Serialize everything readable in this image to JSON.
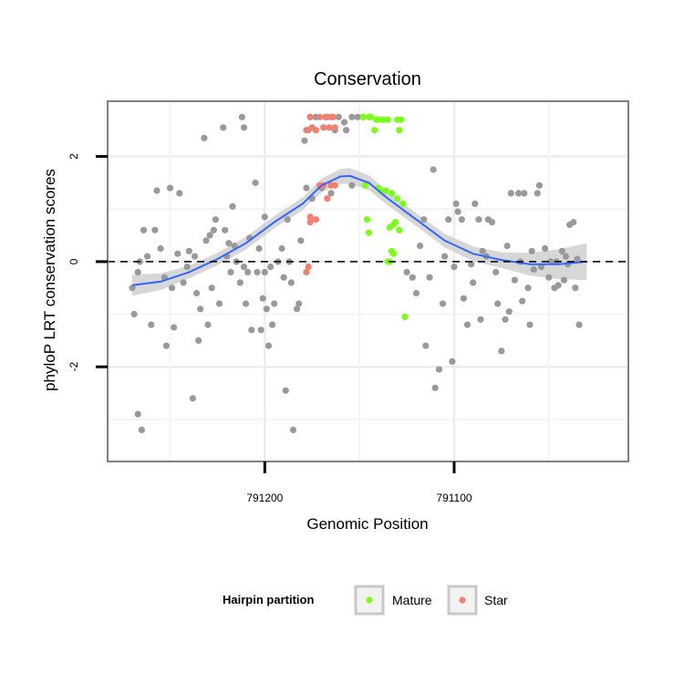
{
  "chart_data": {
    "type": "scatter",
    "title": "Conservation",
    "xlabel": "Genomic Position",
    "ylabel": "phyloP LRT conservation scores",
    "x_reversed": true,
    "xlim": [
      791283,
      791008
    ],
    "ylim": [
      -3.8,
      3.05
    ],
    "x_ticks": [
      791200,
      791100
    ],
    "x_tick_labels": [
      "791200",
      "791100"
    ],
    "y_ticks": [
      -2,
      0,
      2
    ],
    "y_tick_labels": [
      "-2",
      "0",
      "2"
    ],
    "reference_line": {
      "y": 0,
      "style": "dashed"
    },
    "legend": {
      "title": "Hairpin partition",
      "position": "bottom",
      "entries": [
        {
          "label": "Mature",
          "color": "#7CFC1A"
        },
        {
          "label": "Star",
          "color": "#F08070"
        }
      ]
    },
    "colors": {
      "other": "#999999",
      "mature": "#7CFC1A",
      "star": "#F08070",
      "smooth": "#3366FF",
      "band": "#D0D0D0"
    },
    "series": [
      {
        "key": "other",
        "points": [
          [
            791270,
            -0.5
          ],
          [
            791269,
            -1.0
          ],
          [
            791267,
            -2.9
          ],
          [
            791265,
            -3.2
          ],
          [
            791267,
            -0.2
          ],
          [
            791266,
            0.0
          ],
          [
            791264,
            0.6
          ],
          [
            791262,
            0.1
          ],
          [
            791260,
            -1.2
          ],
          [
            791258,
            0.6
          ],
          [
            791257,
            1.35
          ],
          [
            791255,
            0.25
          ],
          [
            791253,
            -0.3
          ],
          [
            791252,
            -1.6
          ],
          [
            791250,
            1.4
          ],
          [
            791249,
            -0.5
          ],
          [
            791248,
            -1.25
          ],
          [
            791246,
            0.15
          ],
          [
            791245,
            1.3
          ],
          [
            791243,
            -0.4
          ],
          [
            791241,
            -0.1
          ],
          [
            791240,
            0.2
          ],
          [
            791238,
            -2.6
          ],
          [
            791237,
            0.1
          ],
          [
            791236,
            -0.6
          ],
          [
            791235,
            -1.5
          ],
          [
            791234,
            -0.9
          ],
          [
            791232,
            2.35
          ],
          [
            791231,
            0.4
          ],
          [
            791230,
            -1.2
          ],
          [
            791229,
            0.5
          ],
          [
            791228,
            -0.5
          ],
          [
            791227,
            0.6
          ],
          [
            791226,
            0.8
          ],
          [
            791224,
            -0.8
          ],
          [
            791222,
            2.55
          ],
          [
            791220,
            0.1
          ],
          [
            791221,
            0.6
          ],
          [
            791219,
            0.35
          ],
          [
            791218,
            -0.2
          ],
          [
            791217,
            1.05
          ],
          [
            791216,
            0.3
          ],
          [
            791215,
            0.0
          ],
          [
            791213,
            -0.4
          ],
          [
            791211,
            -0.1
          ],
          [
            791210,
            -0.8
          ],
          [
            791209,
            -0.2
          ],
          [
            791208,
            0.45
          ],
          [
            791207,
            -1.3
          ],
          [
            791205,
            1.5
          ],
          [
            791204,
            -0.2
          ],
          [
            791203,
            0.25
          ],
          [
            791202,
            -1.3
          ],
          [
            791201,
            -0.7
          ],
          [
            791200,
            -0.2
          ],
          [
            791199,
            -0.9
          ],
          [
            791198,
            -1.6
          ],
          [
            791197,
            -0.1
          ],
          [
            791196,
            -1.2
          ],
          [
            791195,
            -0.8
          ],
          [
            791193,
            0.0
          ],
          [
            791191,
            0.25
          ],
          [
            791190,
            -0.3
          ],
          [
            791189,
            -2.45
          ],
          [
            791188,
            0.8
          ],
          [
            791187,
            0.0
          ],
          [
            791186,
            -0.4
          ],
          [
            791185,
            -3.2
          ],
          [
            791183,
            -0.9
          ],
          [
            791182,
            -0.8
          ],
          [
            791181,
            0.4
          ],
          [
            791179,
            2.3
          ],
          [
            791178,
            1.4
          ],
          [
            791177,
            2.5
          ],
          [
            791176,
            2.75
          ],
          [
            791175,
            1.2
          ],
          [
            791173,
            2.75
          ],
          [
            791170,
            1.4
          ],
          [
            791165,
            1.3
          ],
          [
            791164,
            2.75
          ],
          [
            791163,
            2.5
          ],
          [
            791161,
            2.75
          ],
          [
            791158,
            2.65
          ],
          [
            791157,
            2.5
          ],
          [
            791154,
            2.75
          ],
          [
            791154,
            1.45
          ],
          [
            791151,
            2.75
          ],
          [
            791148,
            2.75
          ],
          [
            791125,
            -0.2
          ],
          [
            791122,
            -0.3
          ],
          [
            791120,
            -0.6
          ],
          [
            791118,
            0.3
          ],
          [
            791116,
            0.8
          ],
          [
            791115,
            -1.6
          ],
          [
            791113,
            -0.3
          ],
          [
            791111,
            1.75
          ],
          [
            791110,
            -2.4
          ],
          [
            791108,
            -2.05
          ],
          [
            791106,
            -0.8
          ],
          [
            791105,
            0.1
          ],
          [
            791103,
            0.8
          ],
          [
            791101,
            -1.9
          ],
          [
            791100,
            -0.1
          ],
          [
            791099,
            1.1
          ],
          [
            791098,
            0.95
          ],
          [
            791096,
            0.8
          ],
          [
            791095,
            -0.7
          ],
          [
            791093,
            -1.2
          ],
          [
            791091,
            -0.05
          ],
          [
            791090,
            -0.4
          ],
          [
            791089,
            1.1
          ],
          [
            791087,
            0.8
          ],
          [
            791086,
            -1.1
          ],
          [
            791085,
            0.2
          ],
          [
            791083,
            0.1
          ],
          [
            791082,
            0.8
          ],
          [
            791080,
            0.75
          ],
          [
            791078,
            -0.2
          ],
          [
            791077,
            -0.8
          ],
          [
            791075,
            -1.7
          ],
          [
            791073,
            -1.1
          ],
          [
            791072,
            0.3
          ],
          [
            791071,
            -0.95
          ],
          [
            791070,
            1.3
          ],
          [
            791068,
            -0.35
          ],
          [
            791066,
            1.3
          ],
          [
            791065,
            0.0
          ],
          [
            791064,
            -0.75
          ],
          [
            791063,
            1.3
          ],
          [
            791061,
            -0.5
          ],
          [
            791060,
            -1.2
          ],
          [
            791059,
            0.2
          ],
          [
            791058,
            -0.15
          ],
          [
            791056,
            1.3
          ],
          [
            791055,
            1.45
          ],
          [
            791054,
            -0.1
          ],
          [
            791052,
            0.25
          ],
          [
            791050,
            -0.3
          ],
          [
            791049,
            0.0
          ],
          [
            791047,
            -0.5
          ],
          [
            791046,
            0.0
          ],
          [
            791045,
            -0.45
          ],
          [
            791043,
            0.2
          ],
          [
            791042,
            -0.35
          ],
          [
            791041,
            0.1
          ],
          [
            791040,
            -0.05
          ],
          [
            791039,
            0.7
          ],
          [
            791037,
            0.75
          ],
          [
            791036,
            -0.5
          ],
          [
            791035,
            0.05
          ],
          [
            791034,
            -1.2
          ],
          [
            791212,
            2.75
          ],
          [
            791211,
            2.55
          ],
          [
            791200,
            0.85
          ]
        ]
      },
      {
        "key": "mature",
        "points": [
          [
            791148,
            2.75
          ],
          [
            791145,
            2.75
          ],
          [
            791144,
            2.75
          ],
          [
            791142,
            2.5
          ],
          [
            791141,
            2.7
          ],
          [
            791140,
            2.7
          ],
          [
            791138,
            2.7
          ],
          [
            791137,
            2.7
          ],
          [
            791135,
            2.7
          ],
          [
            791130,
            2.7
          ],
          [
            791128,
            2.7
          ],
          [
            791129,
            2.5
          ],
          [
            791147,
            1.45
          ],
          [
            791146,
            0.8
          ],
          [
            791145,
            0.55
          ],
          [
            791140,
            1.4
          ],
          [
            791139,
            1.35
          ],
          [
            791136,
            1.35
          ],
          [
            791134,
            0.65
          ],
          [
            791133,
            1.3
          ],
          [
            791132,
            0.7
          ],
          [
            791131,
            0.75
          ],
          [
            791130,
            1.2
          ],
          [
            791129,
            0.6
          ],
          [
            791127,
            1.1
          ],
          [
            791135,
            0.0
          ],
          [
            791134,
            0.0
          ],
          [
            791133,
            0.2
          ],
          [
            791132,
            0.15
          ],
          [
            791126,
            -1.05
          ]
        ]
      },
      {
        "key": "star",
        "points": [
          [
            791178,
            2.5
          ],
          [
            791176,
            2.75
          ],
          [
            791175,
            2.55
          ],
          [
            791173,
            2.5
          ],
          [
            791171,
            2.75
          ],
          [
            791169,
            2.55
          ],
          [
            791168,
            2.75
          ],
          [
            791167,
            2.75
          ],
          [
            791166,
            2.55
          ],
          [
            791165,
            2.75
          ],
          [
            791164,
            2.75
          ],
          [
            791163,
            2.55
          ],
          [
            791171,
            1.45
          ],
          [
            791169,
            1.45
          ],
          [
            791167,
            1.2
          ],
          [
            791165,
            1.45
          ],
          [
            791163,
            1.45
          ],
          [
            791176,
            0.85
          ],
          [
            791176,
            0.75
          ],
          [
            791173,
            0.8
          ],
          [
            791177,
            -0.1
          ],
          [
            791178,
            -0.2
          ]
        ]
      }
    ],
    "smooth_line": [
      [
        791270,
        -0.45
      ],
      [
        791255,
        -0.38
      ],
      [
        791240,
        -0.2
      ],
      [
        791225,
        0.05
      ],
      [
        791210,
        0.35
      ],
      [
        791195,
        0.75
      ],
      [
        791180,
        1.1
      ],
      [
        791170,
        1.45
      ],
      [
        791160,
        1.62
      ],
      [
        791155,
        1.63
      ],
      [
        791145,
        1.5
      ],
      [
        791135,
        1.2
      ],
      [
        791120,
        0.8
      ],
      [
        791105,
        0.4
      ],
      [
        791090,
        0.15
      ],
      [
        791075,
        0.03
      ],
      [
        791060,
        -0.05
      ],
      [
        791045,
        -0.05
      ],
      [
        791030,
        0.0
      ]
    ],
    "band_halfwidth": [
      [
        791270,
        0.2
      ],
      [
        791240,
        0.12
      ],
      [
        791180,
        0.12
      ],
      [
        791155,
        0.15
      ],
      [
        791120,
        0.12
      ],
      [
        791075,
        0.15
      ],
      [
        791030,
        0.35
      ]
    ]
  }
}
